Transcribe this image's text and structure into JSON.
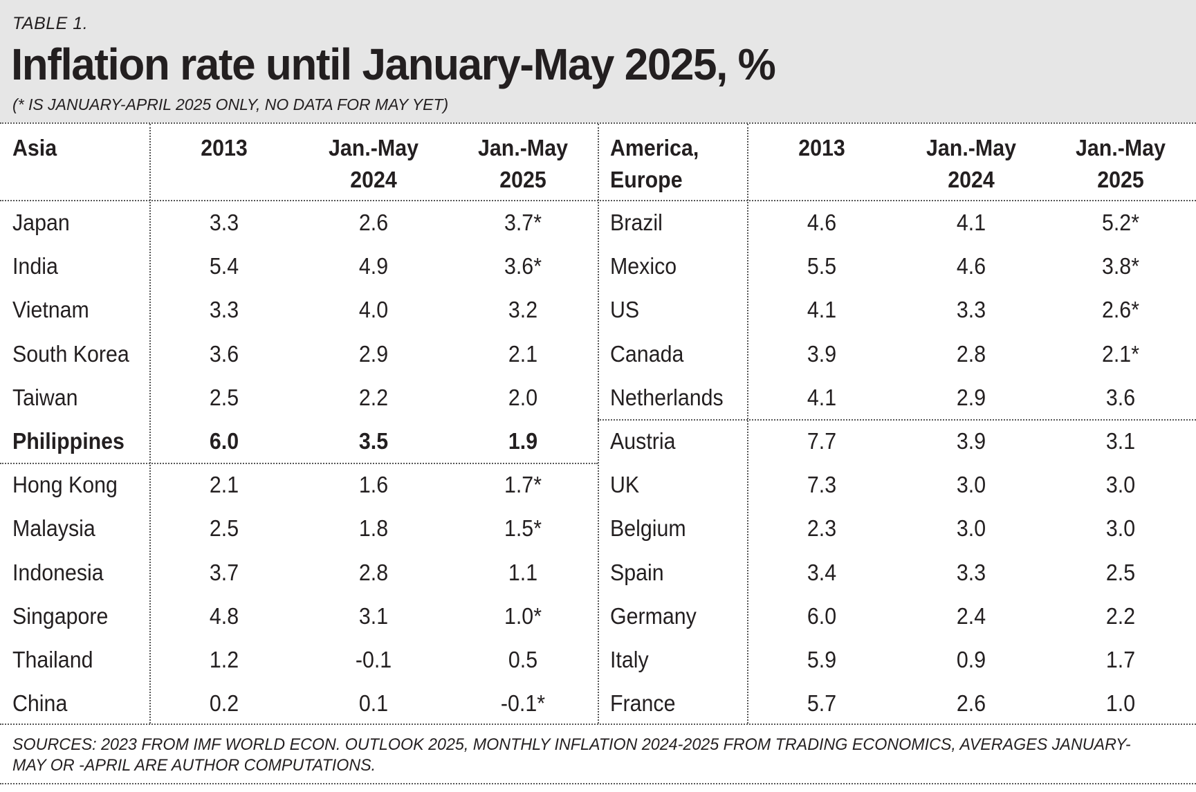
{
  "header": {
    "table_label": "TABLE 1.",
    "title": "Inflation rate until January-May 2025, %",
    "subtitle": "(* IS JANUARY-APRIL 2025 ONLY, NO DATA FOR MAY YET)"
  },
  "footer": {
    "source": "SOURCES: 2023 FROM IMF WORLD ECON. OUTLOOK 2025, MONTHLY INFLATION 2024-2025 FROM TRADING ECONOMICS, AVERAGES JANUARY-MAY OR -APRIL ARE AUTHOR COMPUTATIONS."
  },
  "chart_data": {
    "type": "table",
    "title": "Inflation rate until January-May 2025, %",
    "note": "* is January-April 2025 only, no data for May yet",
    "panels": [
      {
        "group": "Asia",
        "columns": [
          "2013",
          "Jan.-May 2024",
          "Jan.-May 2025"
        ],
        "header_cells": [
          "Asia",
          "2013",
          "Jan.-May\n2024",
          "Jan.-May\n2025"
        ],
        "rows": [
          {
            "name": "Japan",
            "values": [
              "3.3",
              "2.6",
              "3.7*"
            ],
            "bold": false
          },
          {
            "name": "India",
            "values": [
              "5.4",
              "4.9",
              "3.6*"
            ],
            "bold": false
          },
          {
            "name": "Vietnam",
            "values": [
              "3.3",
              "4.0",
              "3.2"
            ],
            "bold": false
          },
          {
            "name": "South Korea",
            "values": [
              "3.6",
              "2.9",
              "2.1"
            ],
            "bold": false
          },
          {
            "name": "Taiwan",
            "values": [
              "2.5",
              "2.2",
              "2.0"
            ],
            "bold": false
          },
          {
            "name": "Philippines",
            "values": [
              "6.0",
              "3.5",
              "1.9"
            ],
            "bold": true
          },
          {
            "name": "Hong Kong",
            "values": [
              "2.1",
              "1.6",
              "1.7*"
            ],
            "bold": false
          },
          {
            "name": "Malaysia",
            "values": [
              "2.5",
              "1.8",
              "1.5*"
            ],
            "bold": false
          },
          {
            "name": "Indonesia",
            "values": [
              "3.7",
              "2.8",
              "1.1"
            ],
            "bold": false
          },
          {
            "name": "Singapore",
            "values": [
              "4.8",
              "3.1",
              "1.0*"
            ],
            "bold": false
          },
          {
            "name": "Thailand",
            "values": [
              "1.2",
              "-0.1",
              "0.5"
            ],
            "bold": false
          },
          {
            "name": "China",
            "values": [
              "0.2",
              "0.1",
              "-0.1*"
            ],
            "bold": false
          }
        ],
        "separator_after_row": 5
      },
      {
        "group": "America, Europe",
        "columns": [
          "2013",
          "Jan.-May 2024",
          "Jan.-May 2025"
        ],
        "header_cells": [
          "America,\nEurope",
          "2013",
          "Jan.-May\n2024",
          "Jan.-May\n2025"
        ],
        "rows": [
          {
            "name": "Brazil",
            "values": [
              "4.6",
              "4.1",
              "5.2*"
            ],
            "bold": false
          },
          {
            "name": "Mexico",
            "values": [
              "5.5",
              "4.6",
              "3.8*"
            ],
            "bold": false
          },
          {
            "name": "US",
            "values": [
              "4.1",
              "3.3",
              "2.6*"
            ],
            "bold": false
          },
          {
            "name": "Canada",
            "values": [
              "3.9",
              "2.8",
              "2.1*"
            ],
            "bold": false
          },
          {
            "name": "Netherlands",
            "values": [
              "4.1",
              "2.9",
              "3.6"
            ],
            "bold": false
          },
          {
            "name": "Austria",
            "values": [
              "7.7",
              "3.9",
              "3.1"
            ],
            "bold": false
          },
          {
            "name": "UK",
            "values": [
              "7.3",
              "3.0",
              "3.0"
            ],
            "bold": false
          },
          {
            "name": "Belgium",
            "values": [
              "2.3",
              "3.0",
              "3.0"
            ],
            "bold": false
          },
          {
            "name": "Spain",
            "values": [
              "3.4",
              "3.3",
              "2.5"
            ],
            "bold": false
          },
          {
            "name": "Germany",
            "values": [
              "6.0",
              "2.4",
              "2.2"
            ],
            "bold": false
          },
          {
            "name": "Italy",
            "values": [
              "5.9",
              "0.9",
              "1.7"
            ],
            "bold": false
          },
          {
            "name": "France",
            "values": [
              "5.7",
              "2.6",
              "1.0"
            ],
            "bold": false
          }
        ],
        "separator_after_row": 4
      }
    ],
    "colors": {
      "header_band": "#e6e6e6",
      "text": "#231f20",
      "rules": "#555555"
    }
  }
}
